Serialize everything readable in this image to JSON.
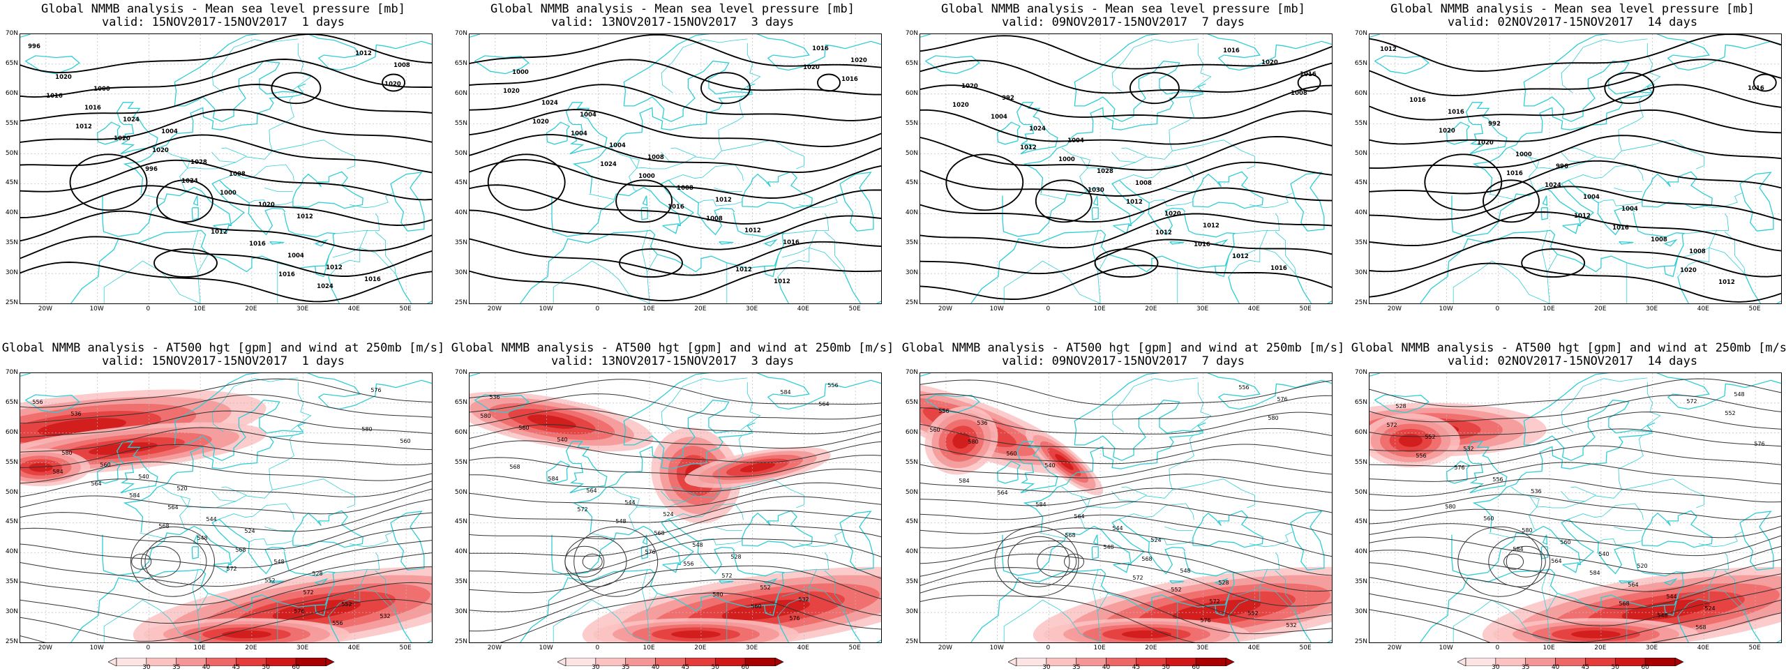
{
  "panels": [
    {
      "title1": "Global NMMB analysis - Mean sea level pressure [mb]",
      "title2": "valid: 15NOV2017-15NOV2017  1 days",
      "kind": "mslp",
      "contour_labels": [
        "996",
        "1000",
        "1004",
        "1008",
        "1012",
        "1016",
        "1020",
        "1024",
        "1028",
        "1020",
        "1012",
        "1008",
        "1016",
        "1020",
        "1000",
        "1004",
        "1012",
        "1016",
        "1020",
        "1024",
        "1016",
        "1024",
        "1020",
        "1012",
        "996",
        "1012",
        "1016"
      ]
    },
    {
      "title1": "Global NMMB analysis - Mean sea level pressure [mb]",
      "title2": "valid: 13NOV2017-15NOV2017  3 days",
      "kind": "mslp",
      "contour_labels": [
        "1000",
        "1004",
        "1008",
        "1012",
        "1016",
        "1020",
        "1024",
        "1004",
        "1008",
        "1012",
        "1016",
        "1020",
        "1004",
        "1000",
        "1008",
        "1012",
        "1016",
        "1020",
        "1024",
        "1016",
        "1012",
        "1020"
      ]
    },
    {
      "title1": "Global NMMB analysis - Mean sea level pressure [mb]",
      "title2": "valid: 09NOV2017-15NOV2017  7 days",
      "kind": "mslp",
      "contour_labels": [
        "992",
        "1004",
        "1008",
        "1012",
        "1016",
        "1020",
        "1024",
        "1028",
        "1020",
        "1012",
        "1016",
        "1004",
        "1000",
        "1012",
        "1016",
        "1020",
        "1020",
        "1012",
        "1030",
        "1012",
        "1016",
        "1008"
      ]
    },
    {
      "title1": "Global NMMB analysis - Mean sea level pressure [mb]",
      "title2": "valid: 02NOV2017-15NOV2017  14 days",
      "kind": "mslp",
      "contour_labels": [
        "992",
        "996",
        "1004",
        "1008",
        "1012",
        "1016",
        "1000",
        "1004",
        "1008",
        "1012",
        "1016",
        "1020",
        "1024",
        "1016",
        "1020",
        "1016",
        "1020",
        "1016",
        "1012"
      ]
    },
    {
      "title1": "Global NMMB analysis - AT500 hgt [gpm] and wind at 250mb [m/s]",
      "title2": "valid: 15NOV2017-15NOV2017  1 days",
      "kind": "z500",
      "contour_labels": [
        "520",
        "524",
        "528",
        "532",
        "536",
        "540",
        "544",
        "548",
        "552",
        "556",
        "560",
        "564",
        "568",
        "572",
        "576",
        "580",
        "584",
        "548",
        "552",
        "556",
        "560",
        "564",
        "568",
        "572",
        "576",
        "580",
        "584"
      ]
    },
    {
      "title1": "Global NMMB analysis - AT500 hgt [gpm] and wind at 250mb [m/s]",
      "title2": "valid: 13NOV2017-15NOV2017  3 days",
      "kind": "z500",
      "contour_labels": [
        "524",
        "528",
        "532",
        "536",
        "540",
        "544",
        "548",
        "552",
        "556",
        "560",
        "564",
        "568",
        "572",
        "576",
        "580",
        "584",
        "548",
        "556",
        "560",
        "564",
        "568",
        "572",
        "576",
        "580",
        "584"
      ]
    },
    {
      "title1": "Global NMMB analysis - AT500 hgt [gpm] and wind at 250mb [m/s]",
      "title2": "valid: 09NOV2017-15NOV2017  7 days",
      "kind": "z500",
      "contour_labels": [
        "524",
        "528",
        "532",
        "536",
        "540",
        "544",
        "548",
        "552",
        "556",
        "560",
        "564",
        "568",
        "572",
        "576",
        "580",
        "584",
        "548",
        "552",
        "556",
        "560",
        "564",
        "568",
        "572",
        "576",
        "580",
        "584"
      ]
    },
    {
      "title1": "Global NMMB analysis - AT500 hgt [gpm] and wind at 250mb [m/s]",
      "title2": "valid: 02NOV2017-15NOV2017  14 days",
      "kind": "z500",
      "contour_labels": [
        "520",
        "524",
        "528",
        "532",
        "536",
        "540",
        "544",
        "548",
        "552",
        "556",
        "560",
        "564",
        "568",
        "572",
        "576",
        "580",
        "584",
        "548",
        "552",
        "556",
        "560",
        "564",
        "568",
        "572",
        "576",
        "580",
        "584"
      ]
    }
  ],
  "lat_labels": [
    "70N",
    "65N",
    "60N",
    "55N",
    "50N",
    "45N",
    "40N",
    "35N",
    "30N",
    "25N"
  ],
  "lon_labels": [
    "20W",
    "10W",
    "0",
    "10E",
    "20E",
    "30E",
    "40E",
    "50E"
  ],
  "colorbar": {
    "labels": [
      "30",
      "35",
      "40",
      "45",
      "50",
      "60"
    ],
    "colors": [
      "#fde4e4",
      "#fbc2c2",
      "#f59696",
      "#ee6767",
      "#e43b3b",
      "#cf1717",
      "#a80000"
    ]
  },
  "colors": {
    "coast": "#2ecdd6",
    "contour": "#000000",
    "z500_contour": "#333333",
    "grid": "#bbbbbb"
  }
}
